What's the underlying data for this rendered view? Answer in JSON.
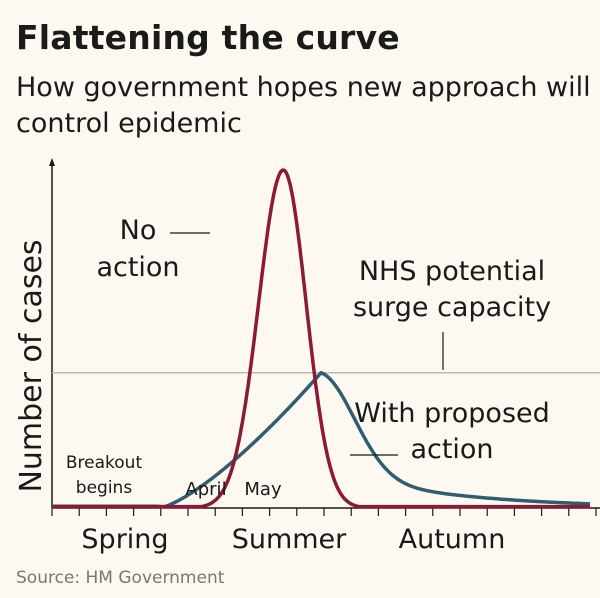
{
  "title": "Flattening the curve",
  "subtitle": "How government hopes new approach will control epidemic",
  "source": "Source: HM Government",
  "chart_data": {
    "type": "line",
    "ylabel": "Number of cases",
    "x_categories": [
      "Spring",
      "Summer",
      "Autumn"
    ],
    "x_annotations": [
      "April",
      "May"
    ],
    "threshold": {
      "label": [
        "NHS potential",
        "surge capacity"
      ],
      "value": 0.4
    },
    "series": [
      {
        "label": [
          "No",
          "action"
        ],
        "color": "#8b1a35",
        "peak": 1.0,
        "peak_x": 0.43,
        "rise_width": 0.065,
        "fall_width": 0.06
      },
      {
        "label": [
          "With proposed",
          "action"
        ],
        "color": "#2f5e74",
        "peak": 0.4,
        "peak_x": 0.5
      }
    ],
    "start_annotation": [
      "Breakout",
      "begins"
    ]
  }
}
